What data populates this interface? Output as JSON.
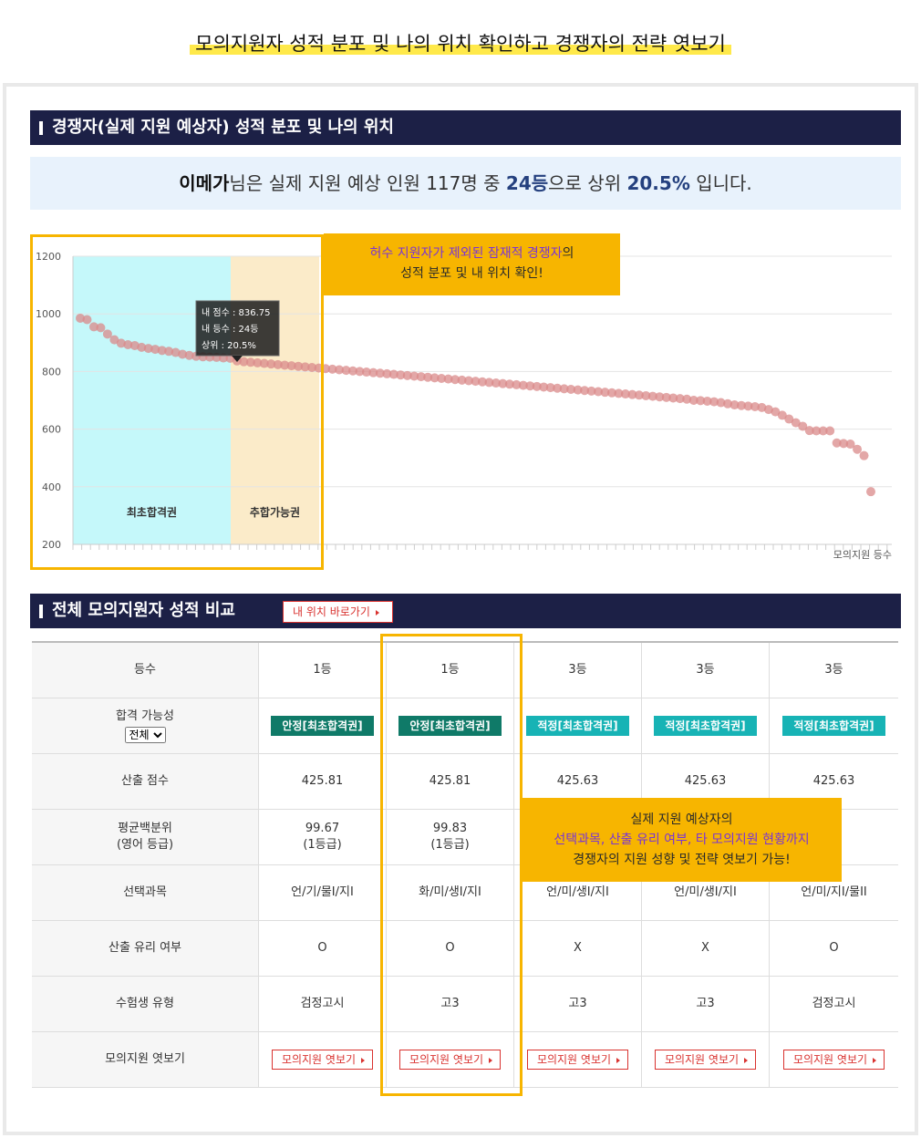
{
  "header": {
    "title": "모의지원자 성적 분포 및 나의 위치 확인하고 경쟁자의 전략 엿보기"
  },
  "section1": {
    "title": "경쟁자(실제 지원 예상자) 성적 분포 및 나의 위치",
    "summary": [
      "이메가",
      "님은 실제 지원 예상 인원 117명 중 ",
      "24등",
      "으로 상위 ",
      "20.5%",
      " 입니다."
    ]
  },
  "chart_data": {
    "type": "scatter",
    "xlabel": "모의지원 등수",
    "color": "#d98a8a",
    "values": [
      985,
      980,
      955,
      952,
      930,
      910,
      898,
      893,
      890,
      884,
      880,
      877,
      873,
      870,
      866,
      860,
      856,
      853,
      851,
      850,
      849,
      847,
      846,
      836.75,
      834,
      832,
      830,
      828,
      826,
      824,
      822,
      820,
      818,
      816,
      814,
      812,
      810,
      808,
      806,
      804,
      802,
      800,
      798,
      796,
      794,
      792,
      790,
      788,
      786,
      784,
      782,
      780,
      778,
      776,
      774,
      772,
      770,
      768,
      766,
      764,
      762,
      760,
      758,
      756,
      754,
      752,
      750,
      748,
      746,
      744,
      742,
      740,
      738,
      736,
      734,
      732,
      730,
      728,
      726,
      724,
      722,
      720,
      718,
      716,
      714,
      712,
      710,
      708,
      706,
      704,
      700,
      699,
      697,
      695,
      692,
      688,
      684,
      682,
      680,
      678,
      675,
      668,
      660,
      648,
      635,
      622,
      610,
      595,
      594,
      594,
      594,
      552,
      550,
      548,
      530,
      508,
      383
    ],
    "ylim": [
      200,
      1200
    ],
    "yticks": [
      200,
      400,
      600,
      800,
      1000,
      1200
    ],
    "grid": true,
    "regions": [
      "최초합격권",
      "추합가능권"
    ],
    "tooltip": [
      "내 점수 : 836.75",
      "내 등수 : 24등",
      "상위 : 20.5%"
    ]
  },
  "callout1": {
    "highlight": "허수 지원자가 제외된 잠재적 경쟁자",
    "rest": "의",
    "line2": "성적 분포 및 내 위치 확인!"
  },
  "section2": {
    "title": "전체 모의지원자 성적 비교",
    "button": "내 위치 바로가기"
  },
  "table": {
    "rows": [
      {
        "label": [
          "등수"
        ],
        "cells": [
          "1등",
          "1등",
          "3등",
          "3등",
          "3등"
        ]
      },
      {
        "label": [
          "합격 가능성"
        ],
        "select": "전체",
        "badge": true,
        "colors": [
          "#0f7a68",
          "#0f7a68",
          "#17b3b5",
          "#17b3b5",
          "#17b3b5"
        ],
        "cells": [
          "안정[최초합격권]",
          "안정[최초합격권]",
          "적정[최초합격권]",
          "적정[최초합격권]",
          "적정[최초합격권]"
        ]
      },
      {
        "label": [
          "산출 점수"
        ],
        "cells": [
          "425.81",
          "425.81",
          "425.63",
          "425.63",
          "425.63"
        ]
      },
      {
        "label": [
          "평균백분위",
          "(영어 등급)"
        ],
        "cells": [
          [
            "99.67",
            "(1등급)"
          ],
          [
            "99.83",
            "(1등급)"
          ],
          null,
          null,
          null
        ]
      },
      {
        "label": [
          "선택과목"
        ],
        "cells": [
          "언/기/물I/지I",
          "화/미/생I/지I",
          "언/미/생I/지I",
          "언/미/생I/지I",
          "언/미/지I/물II"
        ]
      },
      {
        "label": [
          "산출 유리 여부"
        ],
        "cells": [
          "O",
          "O",
          "X",
          "X",
          "O"
        ]
      },
      {
        "label": [
          "수험생 유형"
        ],
        "cells": [
          "검정고시",
          "고3",
          "고3",
          "고3",
          "검정고시"
        ]
      },
      {
        "label": [
          "모의지원 엿보기"
        ],
        "button": true,
        "cells": [
          "모의지원 엿보기",
          "모의지원 엿보기",
          "모의지원 엿보기",
          "모의지원 엿보기",
          "모의지원 엿보기"
        ]
      }
    ]
  },
  "callout2": {
    "line1": "실제 지원 예상자의",
    "highlight": "선택과목, 산출 유리 여부, 타 모의지원 현황까지",
    "line3": "경쟁자의 지원 성향 및 전략 엿보기 가능!"
  }
}
